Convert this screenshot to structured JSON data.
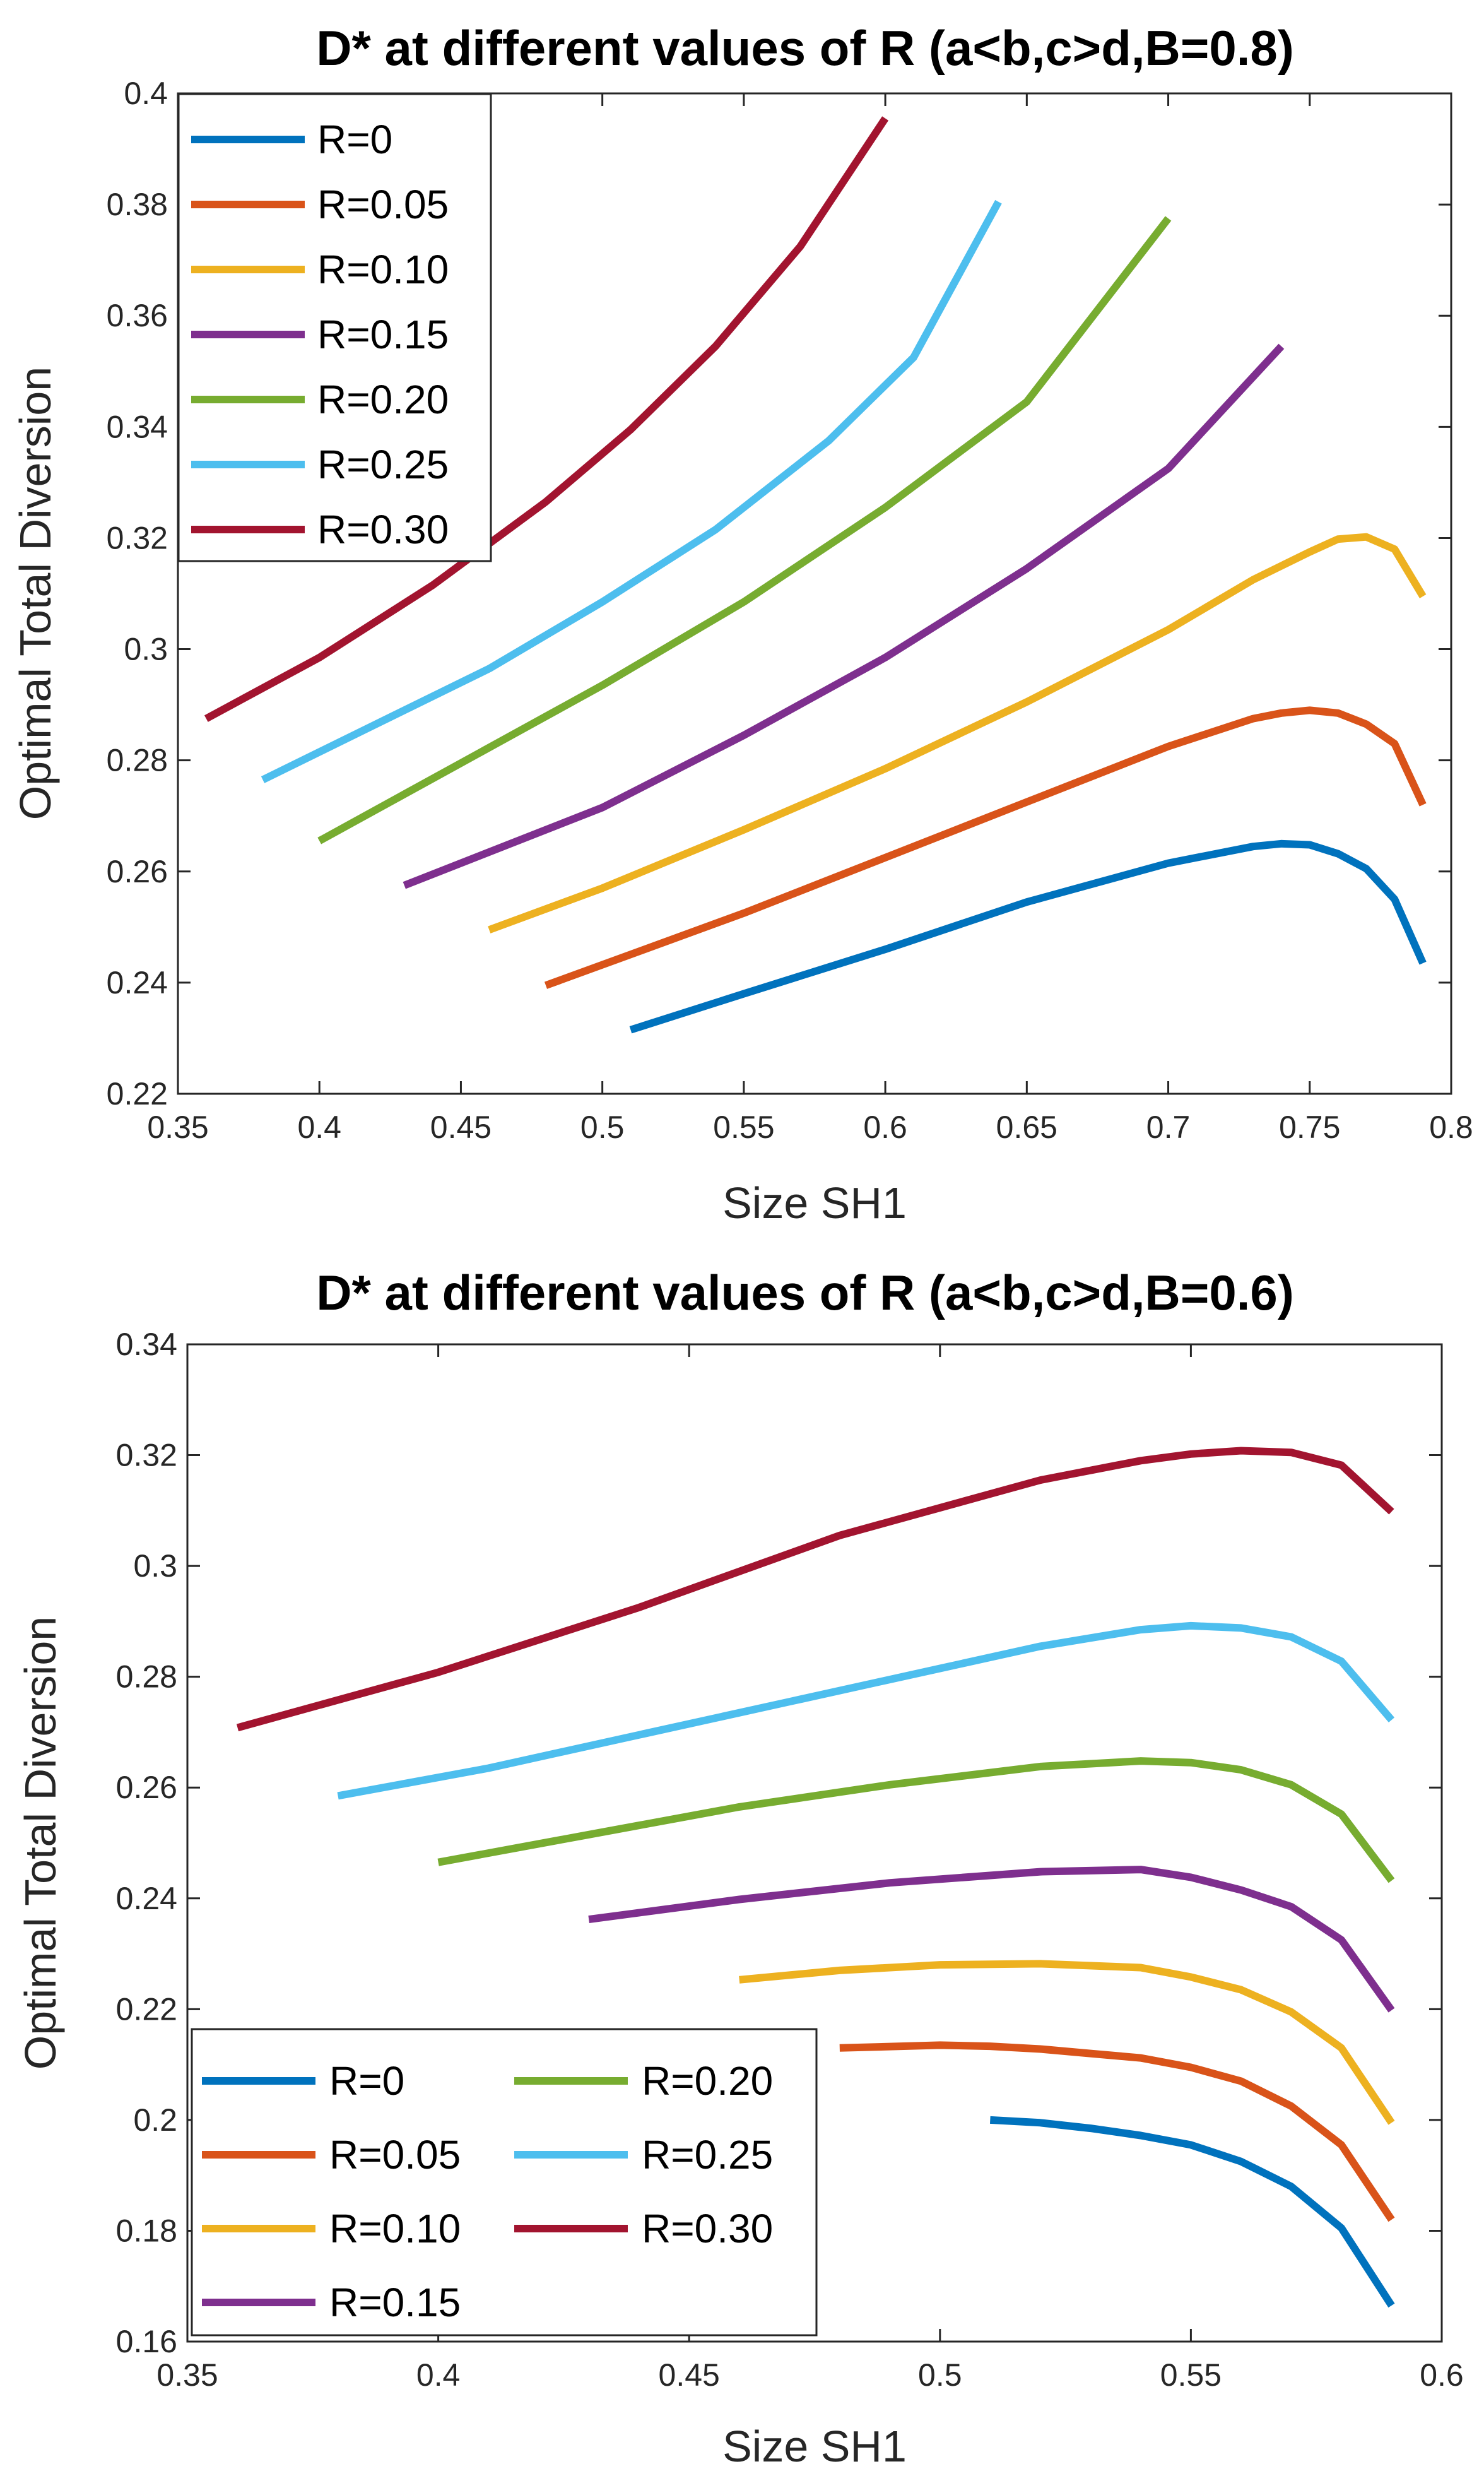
{
  "chart_data": [
    {
      "type": "line",
      "title": "D* at different values of R (a<b,c>d,B=0.8)",
      "xlabel": "Size SH1",
      "ylabel": "Optimal Total Diversion",
      "xlim": [
        0.35,
        0.8
      ],
      "ylim": [
        0.22,
        0.4
      ],
      "xticks": [
        "0.35",
        "0.4",
        "0.45",
        "0.5",
        "0.55",
        "0.6",
        "0.65",
        "0.7",
        "0.75",
        "0.8"
      ],
      "yticks": [
        "0.22",
        "0.24",
        "0.26",
        "0.28",
        "0.3",
        "0.32",
        "0.34",
        "0.36",
        "0.38",
        "0.4"
      ],
      "grid": false,
      "legend_position": "top-left",
      "legend_columns": 1,
      "series": [
        {
          "name": "R=0",
          "color": "#0072BD",
          "x": [
            0.51,
            0.55,
            0.6,
            0.65,
            0.7,
            0.73,
            0.74,
            0.75,
            0.76,
            0.77,
            0.78,
            0.79
          ],
          "y": [
            0.2315,
            0.238,
            0.246,
            0.2545,
            0.2615,
            0.2645,
            0.265,
            0.2648,
            0.2632,
            0.2605,
            0.255,
            0.2435
          ]
        },
        {
          "name": "R=0.05",
          "color": "#D95319",
          "x": [
            0.48,
            0.55,
            0.6,
            0.65,
            0.7,
            0.73,
            0.74,
            0.75,
            0.76,
            0.77,
            0.78,
            0.79
          ],
          "y": [
            0.2395,
            0.2525,
            0.2625,
            0.2725,
            0.2825,
            0.2875,
            0.2885,
            0.289,
            0.2885,
            0.2865,
            0.283,
            0.272
          ]
        },
        {
          "name": "R=0.10",
          "color": "#EDB120",
          "x": [
            0.46,
            0.5,
            0.55,
            0.6,
            0.65,
            0.7,
            0.73,
            0.75,
            0.76,
            0.77,
            0.78,
            0.79
          ],
          "y": [
            0.2495,
            0.257,
            0.2675,
            0.2785,
            0.2905,
            0.3035,
            0.3125,
            0.3175,
            0.3198,
            0.3202,
            0.318,
            0.3095
          ]
        },
        {
          "name": "R=0.15",
          "color": "#7E2F8E",
          "x": [
            0.43,
            0.5,
            0.55,
            0.6,
            0.65,
            0.7,
            0.74
          ],
          "y": [
            0.2575,
            0.2715,
            0.2845,
            0.2985,
            0.3145,
            0.3325,
            0.3545
          ]
        },
        {
          "name": "R=0.20",
          "color": "#77AC30",
          "x": [
            0.4,
            0.45,
            0.5,
            0.55,
            0.6,
            0.65,
            0.7
          ],
          "y": [
            0.2655,
            0.2795,
            0.2935,
            0.3085,
            0.3255,
            0.3445,
            0.3775
          ]
        },
        {
          "name": "R=0.25",
          "color": "#4DBEEE",
          "x": [
            0.38,
            0.42,
            0.46,
            0.5,
            0.54,
            0.58,
            0.61,
            0.64
          ],
          "y": [
            0.2765,
            0.2865,
            0.2965,
            0.3085,
            0.3215,
            0.3375,
            0.3525,
            0.3805
          ]
        },
        {
          "name": "R=0.30",
          "color": "#A2142F",
          "x": [
            0.36,
            0.4,
            0.44,
            0.48,
            0.51,
            0.54,
            0.57,
            0.6
          ],
          "y": [
            0.2875,
            0.2985,
            0.3115,
            0.3265,
            0.3395,
            0.3545,
            0.3725,
            0.3955
          ]
        }
      ]
    },
    {
      "type": "line",
      "title": "D* at different values of R (a<b,c>d,B=0.6)",
      "xlabel": "Size SH1",
      "ylabel": "Optimal Total Diversion",
      "xlim": [
        0.35,
        0.6
      ],
      "ylim": [
        0.16,
        0.34
      ],
      "xticks": [
        "0.35",
        "0.4",
        "0.45",
        "0.5",
        "0.55",
        "0.6"
      ],
      "yticks": [
        "0.16",
        "0.18",
        "0.2",
        "0.22",
        "0.24",
        "0.26",
        "0.28",
        "0.3",
        "0.32",
        "0.34"
      ],
      "grid": false,
      "legend_position": "bottom-left",
      "legend_columns": 2,
      "series": [
        {
          "name": "R=0",
          "color": "#0072BD",
          "x": [
            0.51,
            0.52,
            0.53,
            0.54,
            0.55,
            0.56,
            0.57,
            0.58,
            0.59
          ],
          "y": [
            0.2,
            0.1995,
            0.1985,
            0.1972,
            0.1955,
            0.1925,
            0.188,
            0.1805,
            0.1665
          ]
        },
        {
          "name": "R=0.05",
          "color": "#D95319",
          "x": [
            0.48,
            0.5,
            0.51,
            0.52,
            0.53,
            0.54,
            0.55,
            0.56,
            0.57,
            0.58,
            0.59
          ],
          "y": [
            0.213,
            0.2135,
            0.2133,
            0.2128,
            0.212,
            0.2112,
            0.2095,
            0.207,
            0.2025,
            0.1955,
            0.182
          ]
        },
        {
          "name": "R=0.10",
          "color": "#EDB120",
          "x": [
            0.46,
            0.48,
            0.5,
            0.52,
            0.54,
            0.55,
            0.56,
            0.57,
            0.58,
            0.59
          ],
          "y": [
            0.2253,
            0.227,
            0.228,
            0.2282,
            0.2275,
            0.2258,
            0.2235,
            0.2195,
            0.213,
            0.1995
          ]
        },
        {
          "name": "R=0.15",
          "color": "#7E2F8E",
          "x": [
            0.43,
            0.46,
            0.49,
            0.52,
            0.54,
            0.55,
            0.56,
            0.57,
            0.58,
            0.59
          ],
          "y": [
            0.2362,
            0.2398,
            0.2428,
            0.2448,
            0.2452,
            0.2438,
            0.2415,
            0.2385,
            0.2325,
            0.2198
          ]
        },
        {
          "name": "R=0.20",
          "color": "#77AC30",
          "x": [
            0.4,
            0.43,
            0.46,
            0.49,
            0.52,
            0.54,
            0.55,
            0.56,
            0.57,
            0.58,
            0.59
          ],
          "y": [
            0.2465,
            0.2515,
            0.2565,
            0.2605,
            0.2638,
            0.2648,
            0.2645,
            0.2632,
            0.2605,
            0.2552,
            0.2432
          ]
        },
        {
          "name": "R=0.25",
          "color": "#4DBEEE",
          "x": [
            0.38,
            0.41,
            0.44,
            0.47,
            0.5,
            0.52,
            0.54,
            0.55,
            0.56,
            0.57,
            0.58,
            0.59
          ],
          "y": [
            0.2585,
            0.2635,
            0.2695,
            0.2755,
            0.2815,
            0.2855,
            0.2885,
            0.2892,
            0.2888,
            0.2872,
            0.2828,
            0.2722
          ]
        },
        {
          "name": "R=0.30",
          "color": "#A2142F",
          "x": [
            0.36,
            0.4,
            0.44,
            0.48,
            0.52,
            0.54,
            0.55,
            0.56,
            0.57,
            0.58,
            0.59
          ],
          "y": [
            0.2708,
            0.2808,
            0.2925,
            0.3055,
            0.3155,
            0.319,
            0.3202,
            0.3208,
            0.3205,
            0.3182,
            0.3098
          ]
        }
      ]
    }
  ]
}
